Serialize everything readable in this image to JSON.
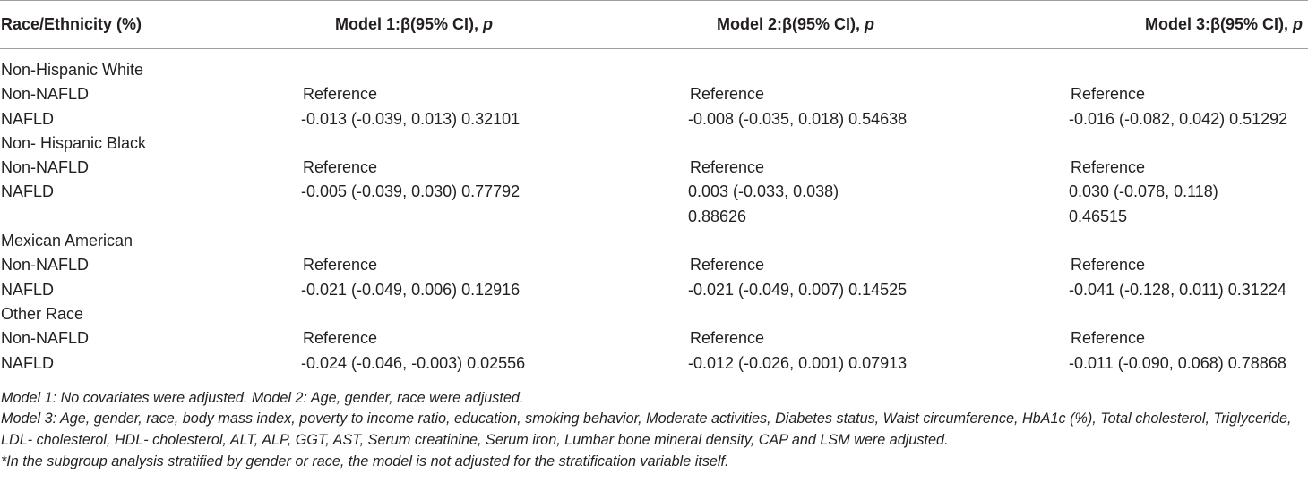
{
  "table": {
    "headers": [
      "Race/Ethnicity (%)",
      "Model 1:β(95% CI), ",
      "Model 2:β(95% CI), ",
      "Model 3:β(95% CI), "
    ],
    "p_symbol": "p",
    "rows": [
      {
        "label": "Non-Hispanic White",
        "v1": "",
        "v2": "",
        "v3": "",
        "v2b": "",
        "v3b": ""
      },
      {
        "label": "Non-NAFLD",
        "v1": "Reference",
        "v2": "Reference",
        "v3": "Reference",
        "v2b": "",
        "v3b": ""
      },
      {
        "label": "NAFLD",
        "v1": "-0.013 (-0.039, 0.013) 0.32101",
        "v2": "-0.008 (-0.035, 0.018) 0.54638",
        "v3": "-0.016 (-0.082, 0.042) 0.51292",
        "v2b": "",
        "v3b": ""
      },
      {
        "label": "Non- Hispanic Black",
        "v1": "",
        "v2": "",
        "v3": "",
        "v2b": "",
        "v3b": ""
      },
      {
        "label": "Non-NAFLD",
        "v1": "Reference",
        "v2": "Reference",
        "v3": "Reference",
        "v2b": "",
        "v3b": ""
      },
      {
        "label": "NAFLD",
        "v1": "-0.005 (-0.039, 0.030) 0.77792",
        "v2": "0.003 (-0.033, 0.038)",
        "v3": "0.030 (-0.078, 0.118)",
        "v2b": "0.88626",
        "v3b": "0.46515"
      },
      {
        "label": "Mexican American",
        "v1": "",
        "v2": "",
        "v3": "",
        "v2b": "",
        "v3b": ""
      },
      {
        "label": "Non-NAFLD",
        "v1": "Reference",
        "v2": "Reference",
        "v3": "Reference",
        "v2b": "",
        "v3b": ""
      },
      {
        "label": "NAFLD",
        "v1": "-0.021 (-0.049, 0.006) 0.12916",
        "v2": "-0.021 (-0.049, 0.007) 0.14525",
        "v3": "-0.041 (-0.128, 0.011) 0.31224",
        "v2b": "",
        "v3b": ""
      },
      {
        "label": "Other Race",
        "v1": "",
        "v2": "",
        "v3": "",
        "v2b": "",
        "v3b": ""
      },
      {
        "label": "Non-NAFLD",
        "v1": "Reference",
        "v2": "Reference",
        "v3": "Reference",
        "v2b": "",
        "v3b": ""
      },
      {
        "label": "NAFLD",
        "v1": "-0.024 (-0.046, -0.003) 0.02556",
        "v2": "-0.012 (-0.026, 0.001) 0.07913",
        "v3": "-0.011 (-0.090, 0.068) 0.78868",
        "v2b": "",
        "v3b": ""
      }
    ]
  },
  "footnotes": [
    "Model 1: No covariates were adjusted. Model 2: Age, gender, race were adjusted.",
    "Model 3: Age, gender, race, body mass index, poverty to income ratio, education, smoking behavior, Moderate activities, Diabetes status, Waist circumference, HbA1c (%), Total cholesterol, Triglyceride, LDL- cholesterol, HDL- cholesterol, ALT, ALP, GGT, AST, Serum creatinine, Serum iron, Lumbar bone mineral density, CAP and LSM were adjusted.",
    "*In the subgroup analysis stratified by gender or race, the model is not adjusted for the stratification variable itself."
  ],
  "colors": {
    "text": "#231f20",
    "rule": "#9d9d9d"
  }
}
